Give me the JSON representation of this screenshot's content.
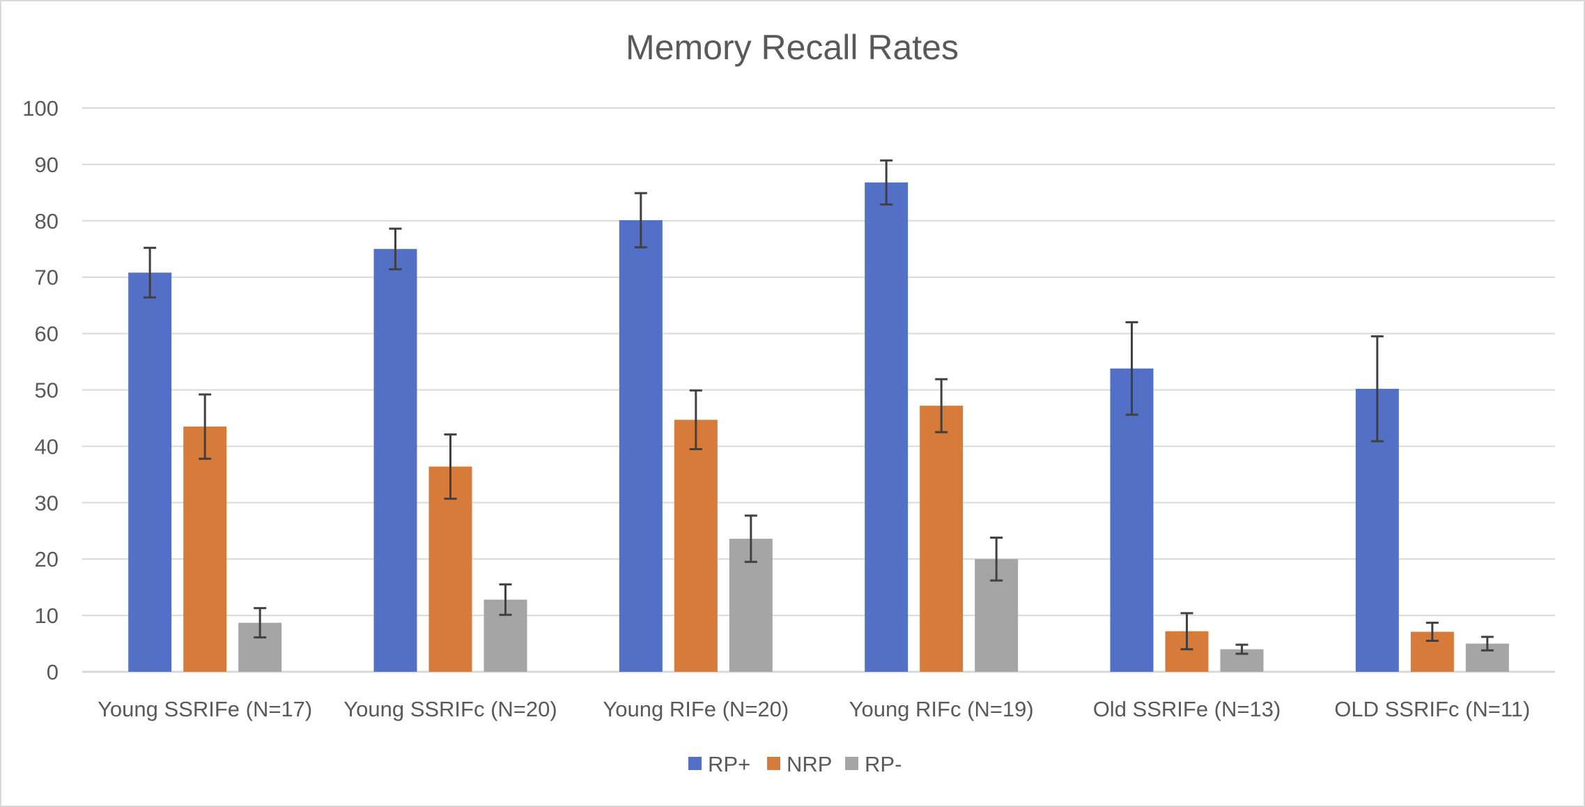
{
  "chart_data": {
    "type": "bar",
    "title": "Memory Recall Rates",
    "xlabel": "",
    "ylabel": "",
    "ylim": [
      0,
      100
    ],
    "yticks": [
      0,
      10,
      20,
      30,
      40,
      50,
      60,
      70,
      80,
      90,
      100
    ],
    "grid": true,
    "legend_position": "bottom",
    "error_bars": true,
    "categories": [
      "Young SSRIFe (N=17)",
      "Young SSRIFc (N=20)",
      "Young RIFe (N=20)",
      "Young RIFc (N=19)",
      "Old SSRIFe (N=13)",
      "OLD SSRIFc (N=11)"
    ],
    "series": [
      {
        "name": "RP+",
        "color": "#5470c6",
        "values": [
          70.8,
          75.0,
          80.1,
          86.8,
          53.8,
          50.2
        ],
        "error": [
          4.4,
          3.6,
          4.8,
          3.9,
          8.2,
          9.3
        ]
      },
      {
        "name": "NRP",
        "color": "#d77b3a",
        "values": [
          43.5,
          36.4,
          44.7,
          47.2,
          7.2,
          7.1
        ],
        "error": [
          5.7,
          5.7,
          5.2,
          4.7,
          3.2,
          1.6
        ]
      },
      {
        "name": "RP-",
        "color": "#a5a5a5",
        "values": [
          8.7,
          12.8,
          23.6,
          20.0,
          4.0,
          5.0
        ],
        "error": [
          2.6,
          2.7,
          4.1,
          3.8,
          0.8,
          1.2
        ]
      }
    ]
  }
}
